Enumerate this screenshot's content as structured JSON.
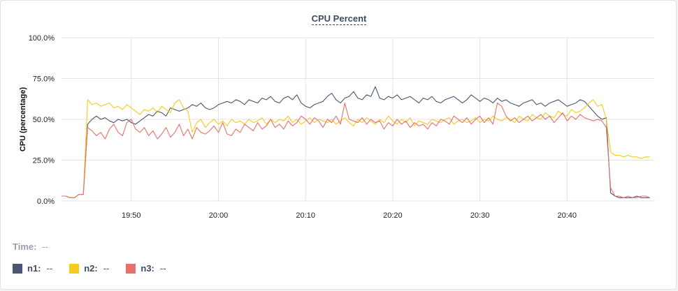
{
  "chart_data": {
    "type": "line",
    "title": "CPU Percent",
    "ylabel": "CPU (percentage)",
    "xlabel": "",
    "ylim": [
      0,
      100
    ],
    "xlim": [
      "19:42",
      "20:50"
    ],
    "yticks": [
      "0.0%",
      "25.0%",
      "50.0%",
      "75.0%",
      "100.0%"
    ],
    "xticks": [
      "19:50",
      "20:00",
      "20:10",
      "20:20",
      "20:30",
      "20:40"
    ],
    "grid": true,
    "x_start": "19:42",
    "x_step_seconds": 30,
    "series": [
      {
        "name": "n1",
        "color": "#4a5772",
        "values": [
          3,
          3,
          2,
          2,
          4,
          4,
          47,
          50,
          52,
          50,
          51,
          49,
          48,
          50,
          49,
          50,
          48,
          47,
          49,
          51,
          53,
          52,
          55,
          54,
          52,
          57,
          56,
          55,
          56,
          57,
          59,
          58,
          60,
          57,
          56,
          57,
          59,
          60,
          61,
          60,
          62,
          61,
          59,
          62,
          61,
          60,
          63,
          62,
          64,
          61,
          60,
          63,
          64,
          62,
          65,
          60,
          58,
          57,
          59,
          60,
          61,
          64,
          66,
          62,
          60,
          63,
          64,
          67,
          63,
          62,
          65,
          64,
          70,
          63,
          62,
          64,
          63,
          65,
          62,
          63,
          64,
          62,
          60,
          63,
          62,
          64,
          61,
          60,
          62,
          63,
          64,
          62,
          60,
          62,
          65,
          63,
          61,
          63,
          62,
          60,
          63,
          61,
          62,
          60,
          59,
          58,
          60,
          61,
          62,
          59,
          60,
          58,
          60,
          61,
          62,
          60,
          58,
          59,
          60,
          62,
          61,
          58,
          55,
          52,
          50,
          51,
          5,
          3,
          2,
          2,
          2,
          2,
          3,
          2,
          2,
          2
        ]
      },
      {
        "name": "n2",
        "color": "#f2cd1c",
        "values": [
          3,
          3,
          2,
          2,
          4,
          4,
          62,
          59,
          60,
          58,
          59,
          60,
          57,
          58,
          56,
          59,
          57,
          55,
          53,
          56,
          55,
          57,
          54,
          58,
          56,
          54,
          60,
          62,
          57,
          55,
          42,
          48,
          50,
          45,
          48,
          50,
          47,
          49,
          46,
          50,
          48,
          49,
          47,
          50,
          48,
          49,
          51,
          47,
          50,
          48,
          50,
          49,
          52,
          48,
          50,
          47,
          49,
          51,
          48,
          50,
          49,
          48,
          50,
          47,
          49,
          51,
          48,
          46,
          50,
          48,
          51,
          49,
          47,
          50,
          48,
          52,
          49,
          47,
          50,
          48,
          51,
          46,
          49,
          48,
          47,
          50,
          49,
          48,
          50,
          51,
          47,
          49,
          50,
          48,
          49,
          51,
          48,
          50,
          49,
          52,
          50,
          49,
          51,
          50,
          48,
          52,
          50,
          49,
          53,
          51,
          50,
          54,
          52,
          51,
          55,
          53,
          52,
          56,
          54,
          55,
          57,
          60,
          62,
          58,
          59,
          50,
          30,
          28,
          28,
          27,
          28,
          27,
          27,
          26,
          27,
          27
        ]
      },
      {
        "name": "n3",
        "color": "#e8706a",
        "values": [
          3,
          3,
          2,
          2,
          4,
          4,
          45,
          43,
          40,
          42,
          38,
          44,
          47,
          42,
          40,
          48,
          50,
          44,
          42,
          45,
          40,
          43,
          38,
          41,
          45,
          39,
          42,
          47,
          40,
          44,
          38,
          45,
          42,
          41,
          43,
          46,
          42,
          48,
          41,
          40,
          44,
          42,
          47,
          45,
          43,
          48,
          44,
          46,
          50,
          45,
          47,
          44,
          49,
          46,
          48,
          52,
          50,
          47,
          51,
          49,
          45,
          50,
          48,
          52,
          47,
          60,
          50,
          49,
          48,
          51,
          47,
          50,
          48,
          49,
          44,
          48,
          46,
          50,
          47,
          49,
          45,
          48,
          46,
          47,
          44,
          48,
          46,
          50,
          49,
          47,
          52,
          50,
          48,
          51,
          47,
          50,
          52,
          48,
          51,
          47,
          60,
          58,
          52,
          49,
          51,
          48,
          50,
          52,
          49,
          51,
          53,
          50,
          52,
          48,
          51,
          54,
          49,
          52,
          50,
          53,
          51,
          50,
          49,
          50,
          49,
          45,
          8,
          3,
          3,
          2,
          3,
          2,
          2,
          3,
          3,
          2
        ]
      }
    ]
  },
  "time_label": "Time:",
  "time_value": "--",
  "legend": [
    {
      "name": "n1",
      "value": "--",
      "color": "#4a5772"
    },
    {
      "name": "n2",
      "value": "--",
      "color": "#f2cd1c"
    },
    {
      "name": "n3",
      "value": "--",
      "color": "#e8706a"
    }
  ]
}
